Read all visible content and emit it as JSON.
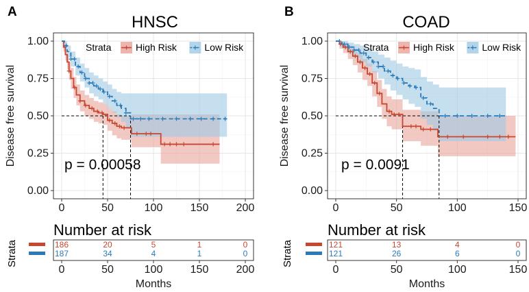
{
  "chart_data": [
    {
      "type": "line",
      "panel_letter": "A",
      "title": "HNSC",
      "xlabel": "Months",
      "ylabel": "Disease free survival",
      "xlim": [
        0,
        200
      ],
      "ylim": [
        0,
        1
      ],
      "x_ticks": [
        "0",
        "50",
        "100",
        "150",
        "200"
      ],
      "y_ticks": [
        "0.00",
        "0.25",
        "0.50",
        "0.75",
        "1.00"
      ],
      "grid": true,
      "legend": {
        "title": "Strata",
        "placement": "top-right",
        "entries": [
          {
            "label": "High Risk",
            "color": "#c84630"
          },
          {
            "label": "Low Risk",
            "color": "#2a7ab8"
          }
        ]
      },
      "p_value": "p = 0.00058",
      "median_lines": {
        "y": 0.5,
        "x_high": 45,
        "x_low": 75
      },
      "series": [
        {
          "name": "High Risk",
          "color": "#c84630",
          "band_color": "#e8a39a",
          "linestyle": "solid",
          "x": [
            0,
            2,
            4,
            6,
            8,
            10,
            13,
            16,
            20,
            25,
            30,
            35,
            40,
            45,
            50,
            55,
            60,
            65,
            70,
            76,
            80,
            90,
            100,
            108,
            120,
            140,
            160,
            172
          ],
          "y": [
            1.0,
            0.96,
            0.91,
            0.86,
            0.8,
            0.75,
            0.69,
            0.64,
            0.6,
            0.57,
            0.55,
            0.53,
            0.52,
            0.51,
            0.47,
            0.45,
            0.43,
            0.42,
            0.42,
            0.38,
            0.38,
            0.38,
            0.38,
            0.31,
            0.31,
            0.31,
            0.31,
            0.31
          ],
          "upper": [
            1.0,
            0.99,
            0.95,
            0.91,
            0.86,
            0.82,
            0.76,
            0.71,
            0.67,
            0.64,
            0.62,
            0.6,
            0.59,
            0.58,
            0.55,
            0.53,
            0.51,
            0.5,
            0.5,
            0.51,
            0.51,
            0.51,
            0.51,
            0.51,
            0.51,
            0.51,
            0.51,
            0.51
          ],
          "lower": [
            1.0,
            0.93,
            0.87,
            0.81,
            0.74,
            0.68,
            0.62,
            0.57,
            0.53,
            0.5,
            0.48,
            0.46,
            0.45,
            0.44,
            0.4,
            0.37,
            0.35,
            0.34,
            0.34,
            0.29,
            0.29,
            0.29,
            0.29,
            0.18,
            0.18,
            0.18,
            0.18,
            0.18
          ],
          "censor_x": [
            8,
            14,
            20,
            26,
            33,
            39,
            44,
            52,
            58,
            63,
            68,
            82,
            92,
            97,
            112,
            118,
            125,
            133,
            165
          ],
          "risk_counts": [
            "186",
            "20",
            "5",
            "1",
            "0"
          ]
        },
        {
          "name": "Low Risk",
          "color": "#2a7ab8",
          "band_color": "#9fcae5",
          "linestyle": "dashed",
          "x": [
            0,
            3,
            6,
            10,
            15,
            20,
            25,
            30,
            35,
            40,
            45,
            50,
            55,
            60,
            65,
            70,
            75,
            80,
            90,
            100,
            120,
            140,
            160,
            180
          ],
          "y": [
            1.0,
            0.97,
            0.93,
            0.88,
            0.83,
            0.79,
            0.75,
            0.72,
            0.7,
            0.68,
            0.66,
            0.63,
            0.6,
            0.57,
            0.55,
            0.52,
            0.48,
            0.48,
            0.48,
            0.48,
            0.48,
            0.48,
            0.48,
            0.48
          ],
          "upper": [
            1.0,
            1.0,
            0.97,
            0.93,
            0.89,
            0.85,
            0.82,
            0.79,
            0.77,
            0.75,
            0.73,
            0.71,
            0.68,
            0.66,
            0.65,
            0.65,
            0.65,
            0.65,
            0.65,
            0.65,
            0.65,
            0.65,
            0.65,
            0.65
          ],
          "lower": [
            1.0,
            0.94,
            0.89,
            0.83,
            0.77,
            0.73,
            0.69,
            0.65,
            0.63,
            0.61,
            0.58,
            0.55,
            0.52,
            0.49,
            0.46,
            0.42,
            0.36,
            0.36,
            0.36,
            0.36,
            0.36,
            0.36,
            0.36,
            0.34
          ],
          "censor_x": [
            5,
            10,
            14,
            18,
            22,
            26,
            30,
            34,
            38,
            42,
            46,
            52,
            58,
            64,
            70,
            78,
            86,
            95,
            110,
            125,
            140,
            152,
            165,
            178
          ],
          "risk_counts": [
            "187",
            "34",
            "4",
            "1",
            "0"
          ]
        }
      ],
      "risk_table": {
        "title": "Number at risk",
        "ylabel": "Strata",
        "x_ticks": [
          "0",
          "50",
          "100",
          "150",
          "200"
        ],
        "xlabel": "Months"
      }
    },
    {
      "type": "line",
      "panel_letter": "B",
      "title": "COAD",
      "xlabel": "Months",
      "ylabel": "Disease free survival",
      "xlim": [
        0,
        150
      ],
      "ylim": [
        0,
        1
      ],
      "x_ticks": [
        "0",
        "50",
        "100",
        "150"
      ],
      "y_ticks": [
        "0.00",
        "0.25",
        "0.50",
        "0.75",
        "1.00"
      ],
      "grid": true,
      "legend": {
        "title": "Strata",
        "placement": "top-right",
        "entries": [
          {
            "label": "High Risk",
            "color": "#c84630"
          },
          {
            "label": "Low Risk",
            "color": "#2a7ab8"
          }
        ]
      },
      "p_value": "p = 0.0091",
      "median_lines": {
        "y": 0.5,
        "x_high": 55,
        "x_low": 85
      },
      "series": [
        {
          "name": "High Risk",
          "color": "#c84630",
          "band_color": "#e8a39a",
          "linestyle": "solid",
          "x": [
            0,
            3,
            6,
            10,
            14,
            18,
            22,
            26,
            30,
            34,
            38,
            42,
            46,
            50,
            55,
            60,
            70,
            80,
            84,
            90,
            100,
            120,
            140,
            148
          ],
          "y": [
            1.0,
            0.98,
            0.96,
            0.93,
            0.9,
            0.86,
            0.82,
            0.78,
            0.72,
            0.65,
            0.58,
            0.53,
            0.51,
            0.51,
            0.43,
            0.43,
            0.41,
            0.41,
            0.36,
            0.36,
            0.36,
            0.36,
            0.36,
            0.36
          ],
          "upper": [
            1.0,
            1.0,
            0.99,
            0.97,
            0.95,
            0.92,
            0.88,
            0.85,
            0.8,
            0.74,
            0.68,
            0.63,
            0.61,
            0.61,
            0.54,
            0.54,
            0.53,
            0.53,
            0.5,
            0.5,
            0.5,
            0.5,
            0.5,
            0.5
          ],
          "lower": [
            1.0,
            0.95,
            0.92,
            0.88,
            0.84,
            0.79,
            0.74,
            0.7,
            0.63,
            0.56,
            0.48,
            0.43,
            0.41,
            0.41,
            0.33,
            0.33,
            0.3,
            0.3,
            0.23,
            0.23,
            0.23,
            0.23,
            0.23,
            0.23
          ],
          "censor_x": [
            4,
            8,
            12,
            16,
            20,
            24,
            28,
            32,
            36,
            44,
            48,
            52,
            62,
            66,
            72,
            78,
            92,
            105,
            125,
            135,
            142
          ],
          "risk_counts": [
            "121",
            "13",
            "4",
            "0"
          ]
        },
        {
          "name": "Low Risk",
          "color": "#2a7ab8",
          "band_color": "#9fcae5",
          "linestyle": "dashed",
          "x": [
            0,
            5,
            10,
            15,
            20,
            25,
            30,
            35,
            40,
            45,
            50,
            55,
            60,
            65,
            70,
            75,
            80,
            85,
            90,
            100,
            120,
            140
          ],
          "y": [
            1.0,
            0.98,
            0.96,
            0.94,
            0.92,
            0.89,
            0.86,
            0.83,
            0.8,
            0.77,
            0.75,
            0.72,
            0.7,
            0.69,
            0.62,
            0.58,
            0.55,
            0.5,
            0.5,
            0.5,
            0.5,
            0.5
          ],
          "upper": [
            1.0,
            1.0,
            0.99,
            0.98,
            0.97,
            0.95,
            0.93,
            0.91,
            0.89,
            0.87,
            0.85,
            0.83,
            0.82,
            0.81,
            0.76,
            0.73,
            0.71,
            0.69,
            0.69,
            0.69,
            0.69,
            0.69
          ],
          "lower": [
            1.0,
            0.95,
            0.92,
            0.89,
            0.86,
            0.83,
            0.79,
            0.75,
            0.71,
            0.67,
            0.64,
            0.61,
            0.58,
            0.56,
            0.48,
            0.44,
            0.4,
            0.33,
            0.33,
            0.33,
            0.33,
            0.33
          ],
          "censor_x": [
            3,
            7,
            11,
            15,
            19,
            23,
            27,
            31,
            35,
            39,
            43,
            47,
            51,
            56,
            61,
            66,
            72,
            78,
            90,
            100,
            112,
            125,
            135
          ],
          "risk_counts": [
            "121",
            "26",
            "6",
            "0"
          ]
        }
      ],
      "risk_table": {
        "title": "Number at risk",
        "ylabel": "Strata",
        "x_ticks": [
          "0",
          "50",
          "100",
          "150"
        ],
        "xlabel": "Months"
      }
    }
  ]
}
